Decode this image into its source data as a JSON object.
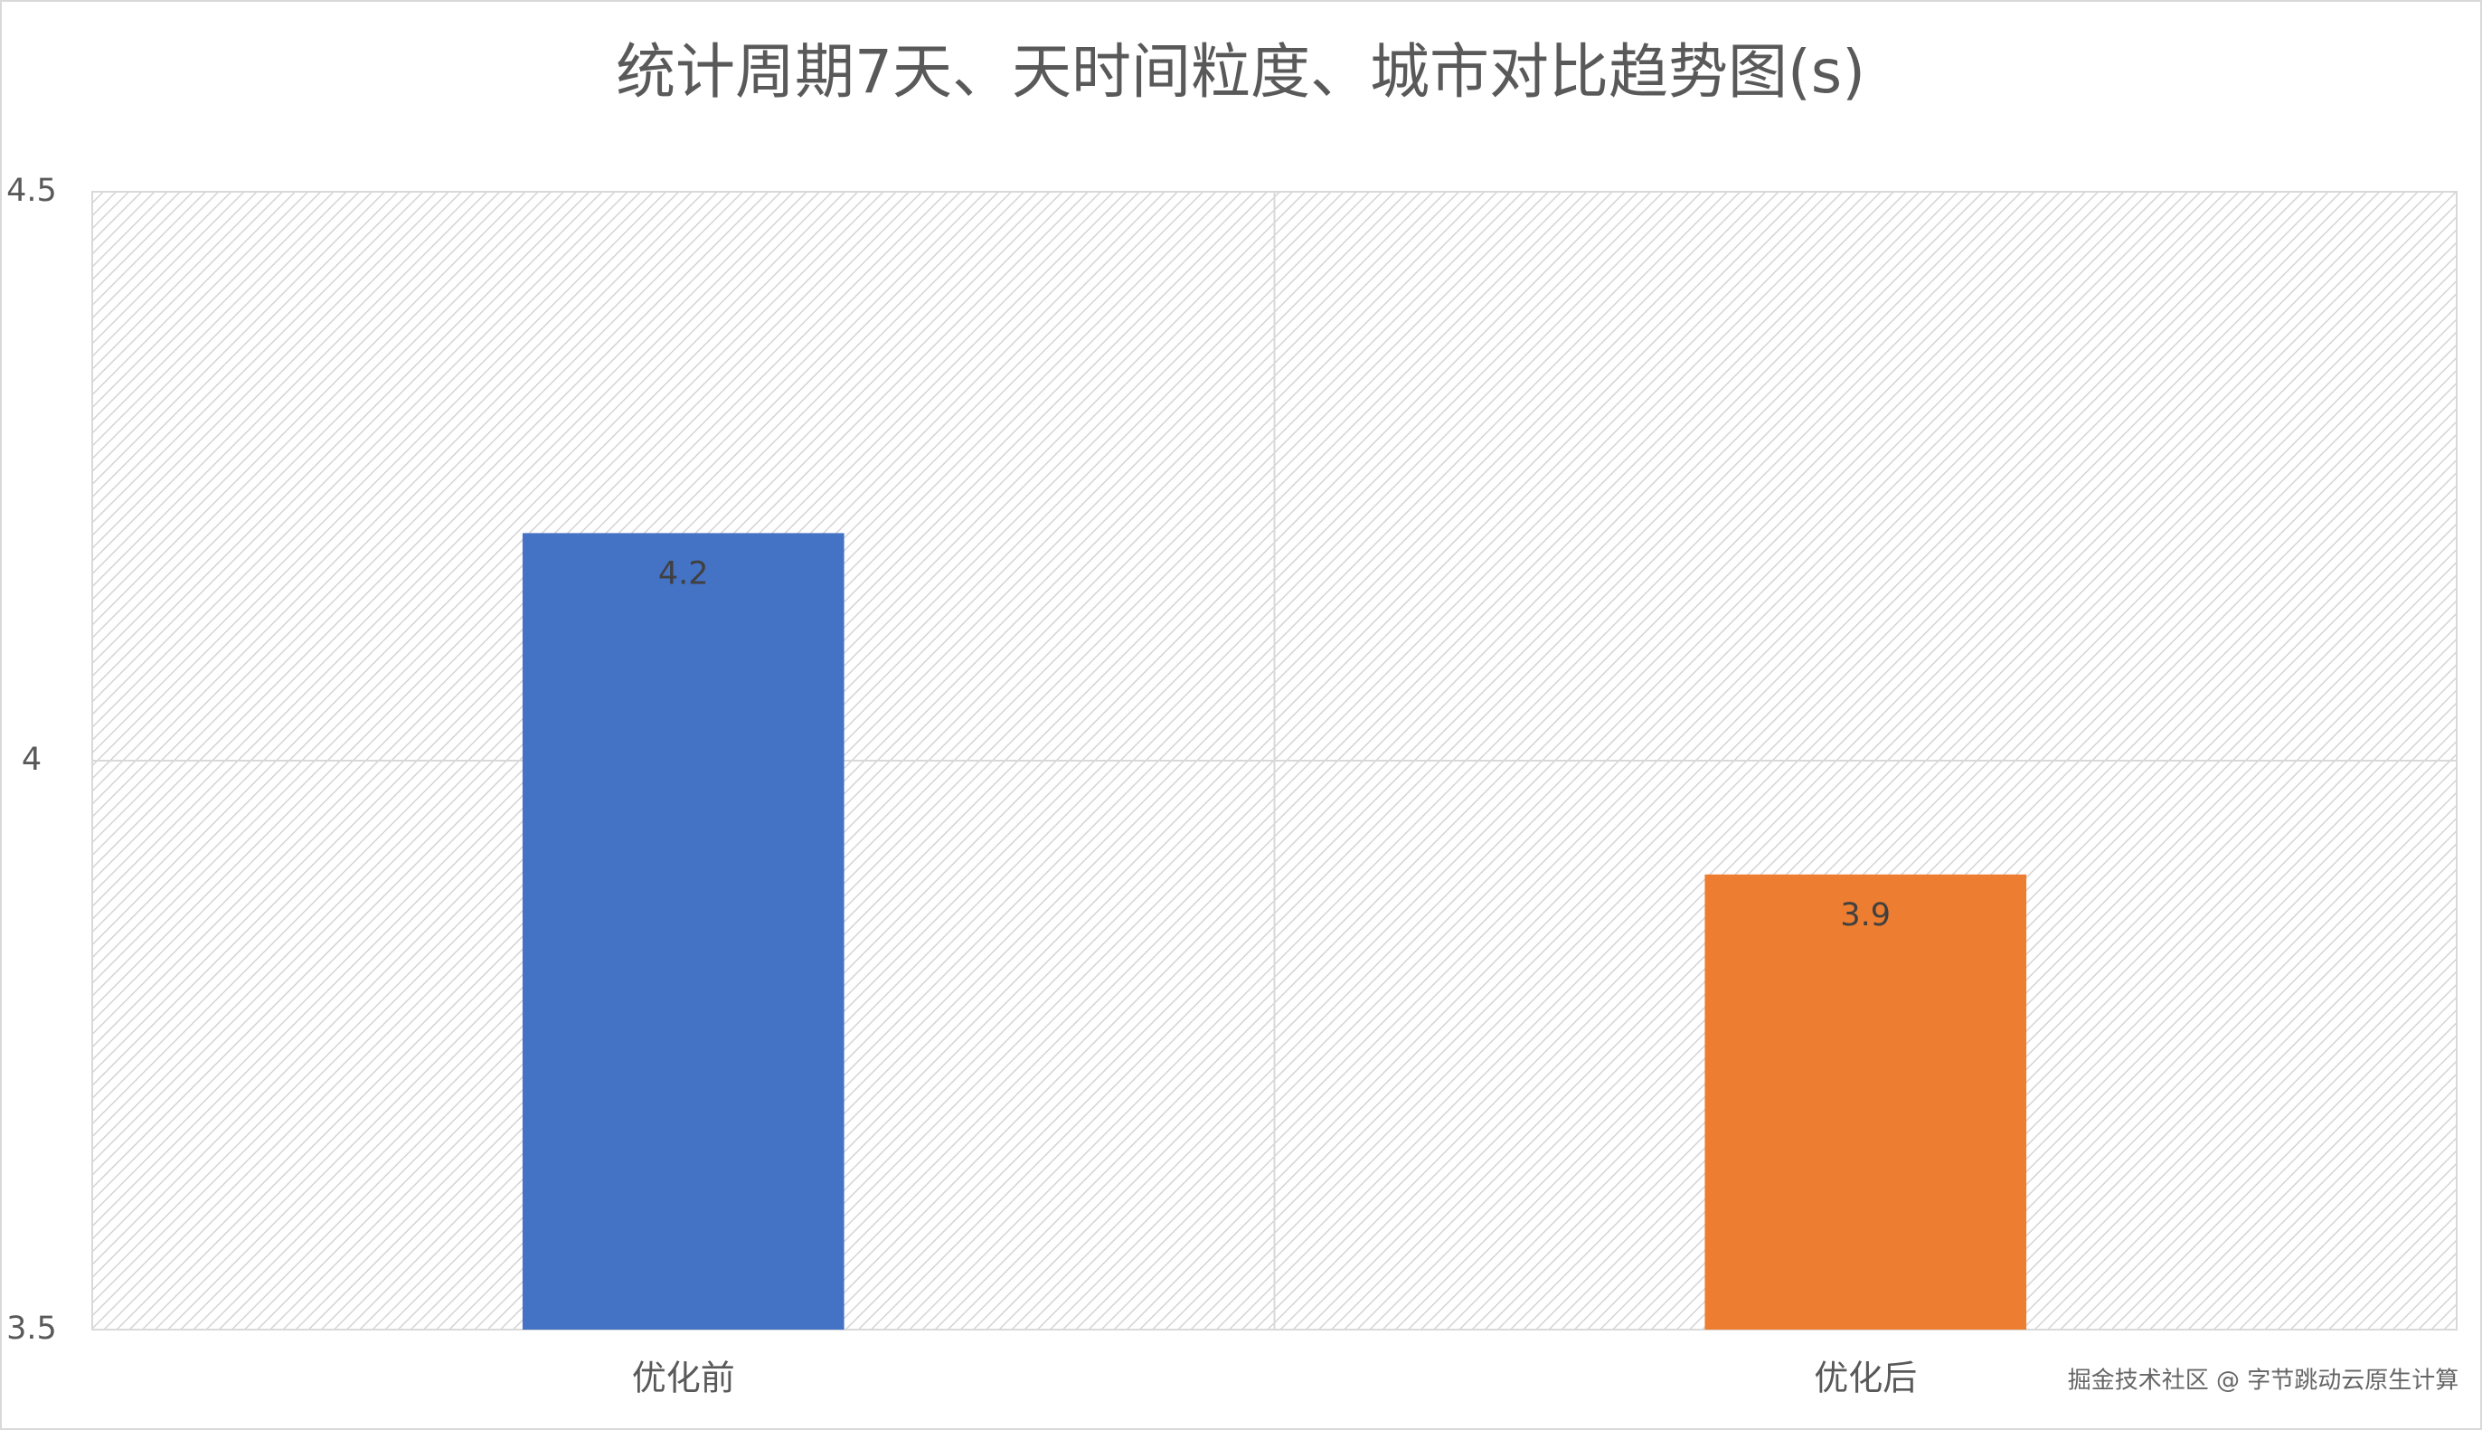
{
  "chart_data": {
    "type": "bar",
    "title": "统计周期7天、天时间粒度、城市对比趋势图(s)",
    "categories": [
      "优化前",
      "优化后"
    ],
    "values": [
      4.2,
      3.9
    ],
    "colors": [
      "#4472c4",
      "#ed7d31"
    ],
    "ylim": [
      3.5,
      4.5
    ],
    "yticks": [
      3.5,
      4,
      4.5
    ],
    "grid": true,
    "watermark": "掘金技术社区 @ 字节跳动云原生计算"
  }
}
